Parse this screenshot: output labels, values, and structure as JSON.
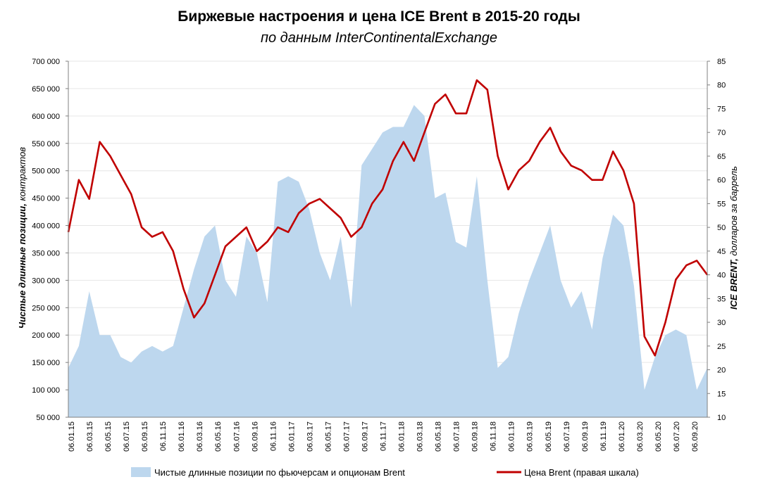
{
  "chart_data": {
    "type": "area+line",
    "title": "Биржевые настроения и цена ICE Brent в 2015-20 годы",
    "subtitle": "по данным InterContinentalExchange",
    "ylabel_left": {
      "bold": "Чистые длинные позиции,",
      "normal": " контрактов"
    },
    "ylabel_right": {
      "bold": "ICE BRENT,",
      "normal": " долларов за баррель"
    },
    "ylim_left": [
      50000,
      700000
    ],
    "ylim_right": [
      10,
      85
    ],
    "yticks_left": [
      "50 000",
      "100 000",
      "150 000",
      "200 000",
      "250 000",
      "300 000",
      "350 000",
      "400 000",
      "450 000",
      "500 000",
      "550 000",
      "600 000",
      "650 000",
      "700 000"
    ],
    "yticks_right": [
      "10",
      "15",
      "20",
      "25",
      "30",
      "35",
      "40",
      "45",
      "50",
      "55",
      "60",
      "65",
      "70",
      "75",
      "80",
      "85"
    ],
    "xticks": [
      "06.01.15",
      "06.03.15",
      "06.05.15",
      "06.07.15",
      "06.09.15",
      "06.11.15",
      "06.01.16",
      "06.03.16",
      "06.05.16",
      "06.07.16",
      "06.09.16",
      "06.11.16",
      "06.01.17",
      "06.03.17",
      "06.05.17",
      "06.07.17",
      "06.09.17",
      "06.11.17",
      "06.01.18",
      "06.03.18",
      "06.05.18",
      "06.07.18",
      "06.09.18",
      "06.11.18",
      "06.01.19",
      "06.03.19",
      "06.05.19",
      "06.07.19",
      "06.09.19",
      "06.11.19",
      "06.01.20",
      "06.03.20",
      "06.05.20",
      "06.07.20",
      "06.09.20"
    ],
    "x_note": "monthly points starting Jan 2015; index i = months since Jan 2015",
    "gridlines": true,
    "legend_position": "bottom",
    "series": [
      {
        "name": "Чистые длинные позиции по фьючерсам и опционам Brent",
        "axis": "left",
        "style": "area",
        "color": "#bdd7ee",
        "values": [
          140000,
          180000,
          280000,
          200000,
          200000,
          160000,
          150000,
          170000,
          180000,
          170000,
          180000,
          250000,
          320000,
          380000,
          400000,
          300000,
          270000,
          380000,
          350000,
          260000,
          480000,
          490000,
          480000,
          430000,
          350000,
          300000,
          380000,
          250000,
          510000,
          540000,
          570000,
          580000,
          580000,
          620000,
          600000,
          450000,
          460000,
          370000,
          360000,
          490000,
          300000,
          140000,
          160000,
          240000,
          300000,
          350000,
          400000,
          300000,
          250000,
          280000,
          210000,
          340000,
          420000,
          400000,
          290000,
          100000,
          160000,
          200000,
          210000,
          200000,
          100000,
          140000
        ]
      },
      {
        "name": "Цена Brent (правая шкала)",
        "axis": "right",
        "style": "line",
        "color": "#c00000",
        "values": [
          49,
          60,
          56,
          68,
          65,
          61,
          57,
          50,
          48,
          49,
          45,
          37,
          31,
          34,
          40,
          46,
          48,
          50,
          45,
          47,
          50,
          49,
          53,
          55,
          56,
          54,
          52,
          48,
          50,
          55,
          58,
          64,
          68,
          64,
          70,
          76,
          78,
          74,
          74,
          81,
          79,
          65,
          58,
          62,
          64,
          68,
          71,
          66,
          63,
          62,
          60,
          60,
          66,
          62,
          55,
          27,
          23,
          30,
          39,
          42,
          43,
          40
        ]
      }
    ]
  },
  "legend": {
    "area_label": "Чистые длинные позиции по фьючерсам и опционам Brent",
    "line_label": "Цена Brent (правая шкала)"
  },
  "colors": {
    "area": "#bdd7ee",
    "line": "#c00000",
    "grid": "#e6e6e6",
    "axis": "#808080"
  }
}
